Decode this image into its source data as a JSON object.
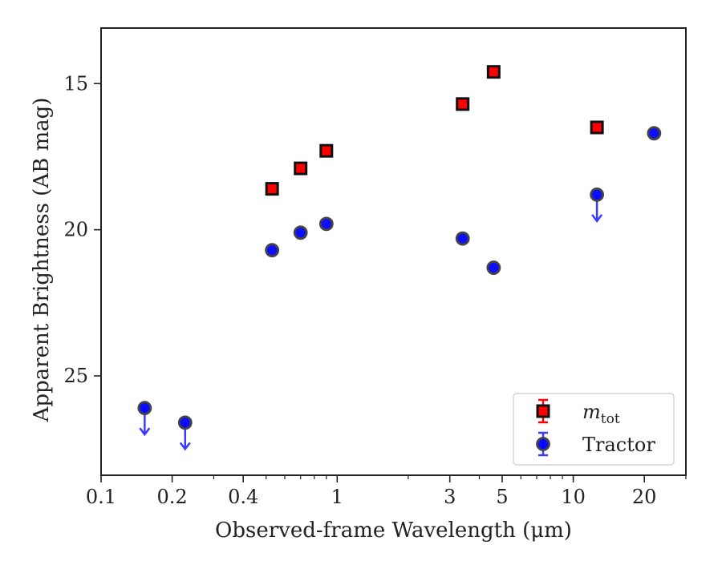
{
  "chart_data": {
    "type": "scatter",
    "xlabel": "Observed-frame Wavelength (μm)",
    "ylabel": "Apparent Brightness (AB mag)",
    "xscale": "log",
    "yaxis_inverted": true,
    "xlim": [
      0.1,
      30
    ],
    "ylim": [
      28.4,
      13.1
    ],
    "grid": false,
    "legend_placement": "lower-right",
    "x_ticks": [
      {
        "value": 0.1,
        "label": "0.1"
      },
      {
        "value": 0.2,
        "label": "0.2"
      },
      {
        "value": 0.4,
        "label": "0.4"
      },
      {
        "value": 1,
        "label": "1"
      },
      {
        "value": 3,
        "label": "3"
      },
      {
        "value": 5,
        "label": "5"
      },
      {
        "value": 10,
        "label": "10"
      },
      {
        "value": 20,
        "label": "20"
      }
    ],
    "y_ticks": [
      {
        "value": 15,
        "label": "15"
      },
      {
        "value": 20,
        "label": "20"
      },
      {
        "value": 25,
        "label": "25"
      }
    ],
    "series": [
      {
        "name": "m_tot",
        "legend_main": "m",
        "legend_sub": "tot",
        "marker": "square",
        "color": "#ff0000",
        "edge_color": "#111111",
        "points": [
          {
            "x": 0.53,
            "y": 18.6
          },
          {
            "x": 0.7,
            "y": 17.9
          },
          {
            "x": 0.9,
            "y": 17.3
          },
          {
            "x": 3.4,
            "y": 15.7
          },
          {
            "x": 4.6,
            "y": 14.6
          },
          {
            "x": 12.6,
            "y": 16.5
          }
        ]
      },
      {
        "name": "Tractor",
        "legend_main": "Tractor",
        "marker": "circle",
        "color": "#0000ff",
        "edge_color": "#444444",
        "points": [
          {
            "x": 0.153,
            "y": 26.1,
            "upper_limit": true
          },
          {
            "x": 0.227,
            "y": 26.6,
            "upper_limit": true
          },
          {
            "x": 0.53,
            "y": 20.7
          },
          {
            "x": 0.7,
            "y": 20.1
          },
          {
            "x": 0.9,
            "y": 19.8
          },
          {
            "x": 3.4,
            "y": 20.3
          },
          {
            "x": 4.6,
            "y": 21.3
          },
          {
            "x": 12.6,
            "y": 18.8,
            "upper_limit": true
          },
          {
            "x": 22.0,
            "y": 16.7
          }
        ]
      }
    ]
  }
}
